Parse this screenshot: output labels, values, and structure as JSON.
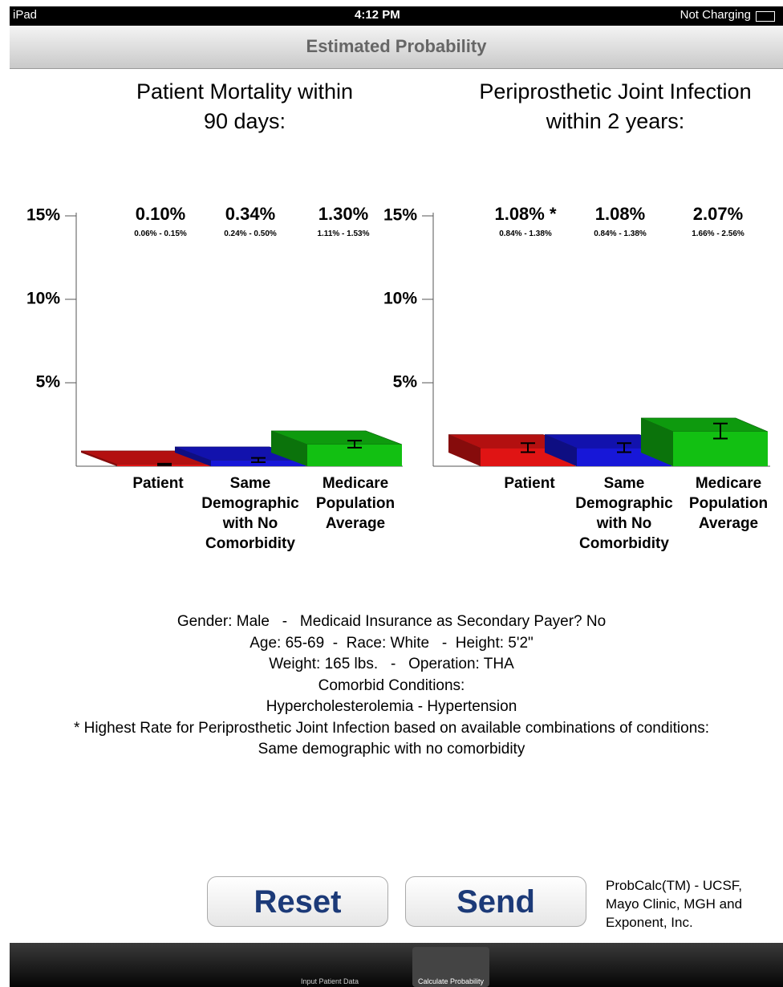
{
  "status_bar": {
    "device": "iPad",
    "time": "4:12 PM",
    "battery": "Not Charging"
  },
  "nav_bar": {
    "title": "Estimated Probability"
  },
  "chart_data": [
    {
      "type": "bar",
      "title": "Patient Mortality within 90 days:",
      "categories": [
        "Patient",
        "Same Demographic with No Comorbidity",
        "Medicare Population Average"
      ],
      "values": [
        0.1,
        0.34,
        1.3
      ],
      "value_labels": [
        "0.10%",
        "0.34%",
        "1.30%"
      ],
      "lows": [
        0.06,
        0.24,
        1.11
      ],
      "highs": [
        0.15,
        0.5,
        1.53
      ],
      "range_labels": [
        "0.06% - 0.15%",
        "0.24% - 0.50%",
        "1.11% - 1.53%"
      ],
      "colors": [
        "#e01414",
        "#1717d8",
        "#12c012"
      ],
      "ylim": [
        0,
        15
      ],
      "yticks": [
        {
          "value": 5,
          "label": "5%"
        },
        {
          "value": 10,
          "label": "10%"
        },
        {
          "value": 15,
          "label": "15%"
        }
      ]
    },
    {
      "type": "bar",
      "title": "Periprosthetic Joint Infection within 2 years:",
      "categories": [
        "Patient",
        "Same Demographic with No Comorbidity",
        "Medicare Population Average"
      ],
      "values": [
        1.08,
        1.08,
        2.07
      ],
      "value_labels": [
        "1.08% *",
        "1.08%",
        "2.07%"
      ],
      "lows": [
        0.84,
        0.84,
        1.66
      ],
      "highs": [
        1.38,
        1.38,
        2.56
      ],
      "range_labels": [
        "0.84% - 1.38%",
        "0.84% - 1.38%",
        "1.66% - 2.56%"
      ],
      "colors": [
        "#e01414",
        "#1717d8",
        "#12c012"
      ],
      "ylim": [
        0,
        15
      ],
      "yticks": [
        {
          "value": 5,
          "label": "5%"
        },
        {
          "value": 10,
          "label": "10%"
        },
        {
          "value": 15,
          "label": "15%"
        }
      ]
    }
  ],
  "patient_summary": [
    "Gender: Male   -   Medicaid Insurance as Secondary Payer? No",
    "Age: 65-69  -  Race: White   -  Height: 5'2\"",
    "Weight: 165 lbs.   -   Operation: THA",
    "Comorbid Conditions:",
    "Hypercholesterolemia - Hypertension",
    "* Highest Rate for Periprosthetic Joint Infection based on available combinations of conditions:",
    "Same demographic with no comorbidity"
  ],
  "buttons": [
    "Reset",
    "Send"
  ],
  "credit": "ProbCalc(TM) - UCSF, Mayo Clinic, MGH and Exponent, Inc.",
  "tabs": [
    "Input Patient Data",
    "Calculate Probability"
  ]
}
